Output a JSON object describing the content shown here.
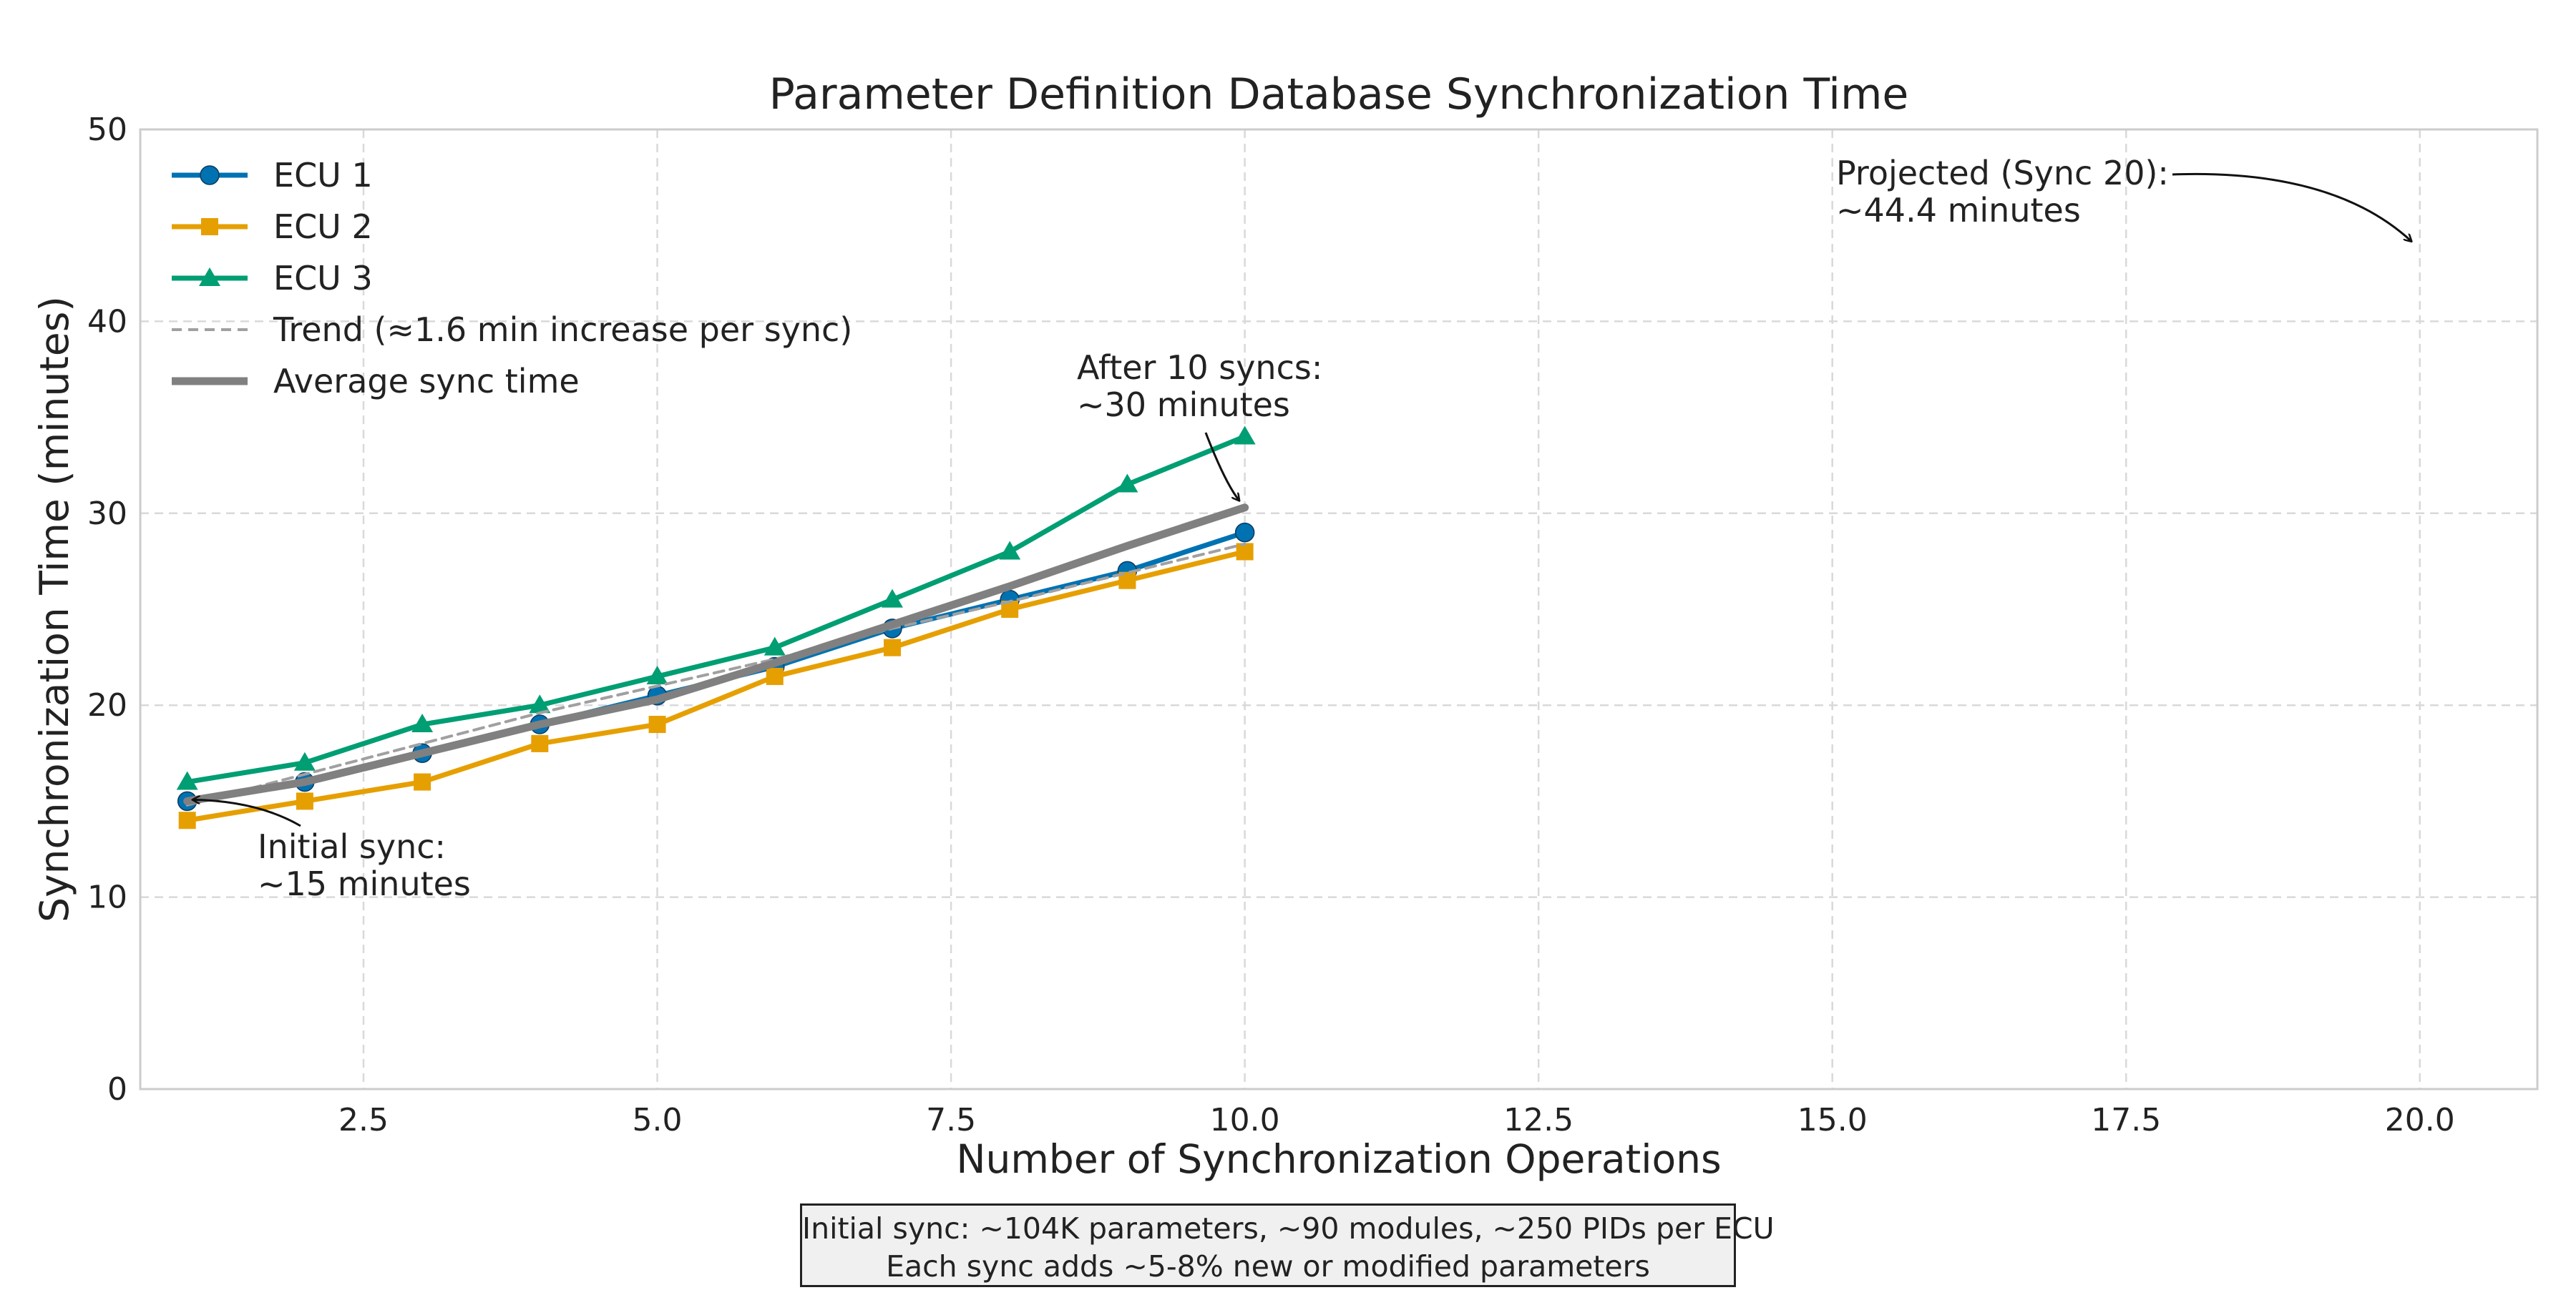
{
  "chart_data": {
    "type": "line",
    "title": "Parameter Definition Database Synchronization Time",
    "xlabel": "Number of Synchronization Operations",
    "ylabel": "Synchronization Time (minutes)",
    "xlim": [
      0.6,
      21.0
    ],
    "ylim": [
      0,
      50
    ],
    "xticks": [
      2.5,
      5.0,
      7.5,
      10.0,
      12.5,
      15.0,
      17.5,
      20.0
    ],
    "xtick_labels": [
      "2.5",
      "5.0",
      "7.5",
      "10.0",
      "12.5",
      "15.0",
      "17.5",
      "20.0"
    ],
    "yticks": [
      0,
      10,
      20,
      30,
      40,
      50
    ],
    "ytick_labels": [
      "0",
      "10",
      "20",
      "30",
      "40",
      "50"
    ],
    "grid": true,
    "legend_position": "top-left",
    "x": [
      1,
      2,
      3,
      4,
      5,
      6,
      7,
      8,
      9,
      10
    ],
    "series": [
      {
        "name": "ECU 1",
        "color": "#0072b2",
        "marker": "circle",
        "values": [
          15,
          16,
          17.5,
          19,
          20.5,
          22,
          24,
          25.5,
          27,
          29
        ]
      },
      {
        "name": "ECU 2",
        "color": "#e69f00",
        "marker": "square",
        "values": [
          14,
          15,
          16,
          18,
          19,
          21.5,
          23,
          25,
          26.5,
          28
        ]
      },
      {
        "name": "ECU 3",
        "color": "#009e73",
        "marker": "triangle",
        "values": [
          16,
          17,
          19,
          20,
          21.5,
          23,
          25.5,
          28,
          31.5,
          34
        ]
      },
      {
        "name": "Trend (≈1.6 min increase per sync)",
        "color": "#a0a0a0",
        "style": "dashed",
        "values": [
          14.8,
          16.4,
          18.0,
          19.6,
          21.0,
          22.4,
          24.0,
          25.4,
          26.9,
          28.4
        ]
      },
      {
        "name": "Average sync time",
        "color": "#808080",
        "style": "thick",
        "values": [
          15.0,
          16.0,
          17.5,
          19.0,
          20.3,
          22.2,
          24.2,
          26.2,
          28.3,
          30.3
        ]
      }
    ],
    "annotations": [
      {
        "id": "initial",
        "lines": [
          "Initial sync:",
          "~15 minutes"
        ],
        "point": [
          1,
          15
        ]
      },
      {
        "id": "after10",
        "lines": [
          "After 10 syncs:",
          "~30 minutes"
        ],
        "point": [
          10,
          30.3
        ]
      },
      {
        "id": "projected",
        "lines": [
          "Projected (Sync 20):",
          "~44.4 minutes"
        ],
        "point": [
          20,
          44.4
        ]
      }
    ]
  },
  "footnote": {
    "line1": "Initial sync: ~104K parameters, ~90 modules, ~250 PIDs per ECU",
    "line2": "Each sync adds ~5-8% new or modified parameters"
  }
}
